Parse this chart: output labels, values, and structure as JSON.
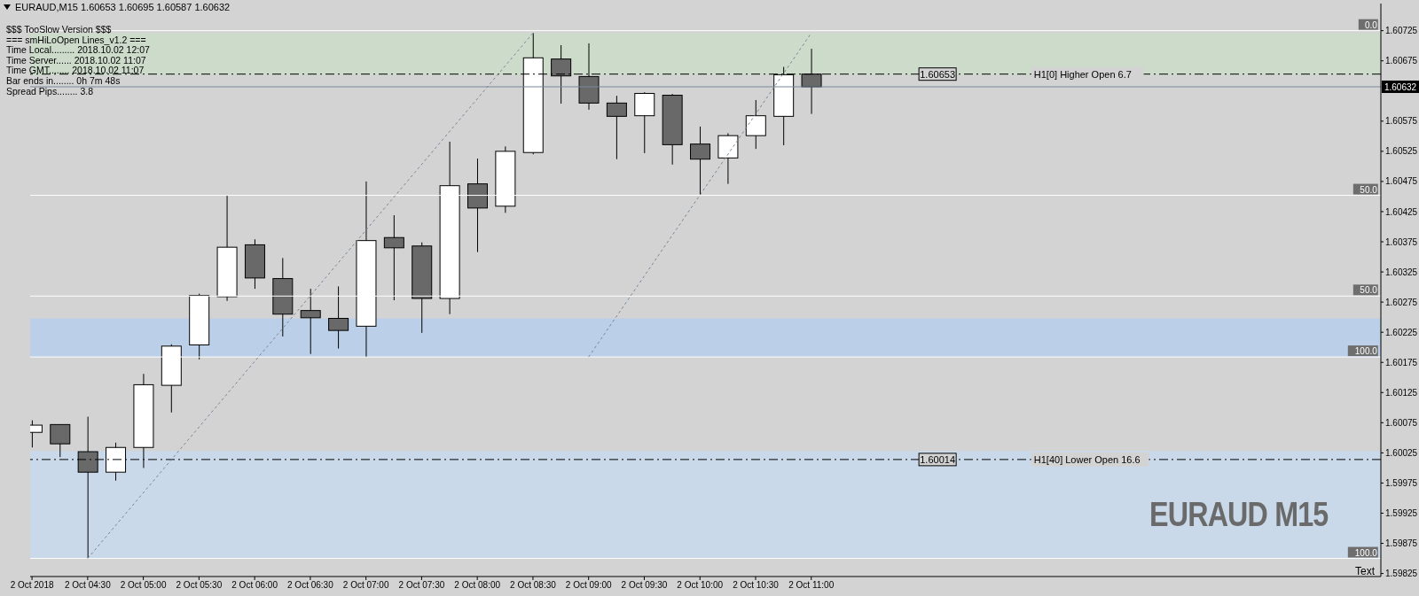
{
  "chart_data": {
    "type": "candlestick",
    "title": "EURAUD,M15  1.60653 1.60695 1.60587 1.60632",
    "subtitle": "EURAUD M15",
    "x": [
      "2018-10-02T04:00",
      "2018-10-02T04:15",
      "2018-10-02T04:30",
      "2018-10-02T04:45",
      "2018-10-02T05:00",
      "2018-10-02T05:15",
      "2018-10-02T05:30",
      "2018-10-02T05:45",
      "2018-10-02T06:00",
      "2018-10-02T06:15",
      "2018-10-02T06:30",
      "2018-10-02T06:45",
      "2018-10-02T07:00",
      "2018-10-02T07:15",
      "2018-10-02T07:30",
      "2018-10-02T07:45",
      "2018-10-02T08:00",
      "2018-10-02T08:15",
      "2018-10-02T08:30",
      "2018-10-02T08:45",
      "2018-10-02T09:00",
      "2018-10-02T09:15",
      "2018-10-02T09:30",
      "2018-10-02T09:45",
      "2018-10-02T10:00",
      "2018-10-02T10:15",
      "2018-10-02T10:30",
      "2018-10-02T10:45",
      "2018-10-02T11:00"
    ],
    "ohlc": [
      [
        1.60059,
        1.60079,
        1.60034,
        1.60071
      ],
      [
        1.60072,
        1.60072,
        1.60018,
        1.6004
      ],
      [
        1.60027,
        1.60085,
        1.5985,
        1.59993
      ],
      [
        1.59993,
        1.60042,
        1.59979,
        1.60034
      ],
      [
        1.60034,
        1.60156,
        1.6,
        1.60138
      ],
      [
        1.60137,
        1.60205,
        1.60092,
        1.60202
      ],
      [
        1.60204,
        1.60289,
        1.6018,
        1.60286
      ],
      [
        1.60284,
        1.60452,
        1.60277,
        1.60366
      ],
      [
        1.6037,
        1.60379,
        1.60297,
        1.60315
      ],
      [
        1.60314,
        1.60348,
        1.60218,
        1.60255
      ],
      [
        1.60261,
        1.60297,
        1.60189,
        1.60249
      ],
      [
        1.60248,
        1.60301,
        1.60198,
        1.60228
      ],
      [
        1.60235,
        1.60475,
        1.60184,
        1.60377
      ],
      [
        1.60382,
        1.60419,
        1.60278,
        1.60365
      ],
      [
        1.60368,
        1.60374,
        1.60224,
        1.60281
      ],
      [
        1.60281,
        1.60541,
        1.60255,
        1.60468
      ],
      [
        1.60471,
        1.60513,
        1.60358,
        1.60431
      ],
      [
        1.60434,
        1.60533,
        1.60423,
        1.60525
      ],
      [
        1.60523,
        1.60721,
        1.6052,
        1.6068
      ],
      [
        1.60678,
        1.60701,
        1.60604,
        1.6065
      ],
      [
        1.60649,
        1.60704,
        1.60594,
        1.60605
      ],
      [
        1.60605,
        1.60617,
        1.60512,
        1.60583
      ],
      [
        1.60584,
        1.60623,
        1.60522,
        1.60621
      ],
      [
        1.60618,
        1.6062,
        1.60503,
        1.60536
      ],
      [
        1.60537,
        1.60566,
        1.60453,
        1.60512
      ],
      [
        1.60514,
        1.60555,
        1.60471,
        1.60551
      ],
      [
        1.60551,
        1.6061,
        1.60529,
        1.60584
      ],
      [
        1.60583,
        1.60665,
        1.60535,
        1.60652
      ],
      [
        1.60653,
        1.60695,
        1.60587,
        1.60632
      ]
    ],
    "colors": [
      "#ffffff",
      "#696969",
      "#696969",
      "#ffffff",
      "#ffffff",
      "#ffffff",
      "#ffffff",
      "#ffffff",
      "#696969",
      "#696969",
      "#696969",
      "#696969",
      "#ffffff",
      "#696969",
      "#696969",
      "#ffffff",
      "#696969",
      "#ffffff",
      "#ffffff",
      "#696969",
      "#696969",
      "#696969",
      "#ffffff",
      "#696969",
      "#696969",
      "#ffffff",
      "#ffffff",
      "#ffffff",
      "#696969"
    ],
    "series": [
      {
        "type": "line",
        "x": [
          "2018-10-02T04:30",
          "2018-10-02T08:30"
        ],
        "values": [
          1.5985,
          1.60721
        ],
        "color": "#778899",
        "line_style": "dashed"
      },
      {
        "type": "line",
        "x": [
          "2018-10-02T09:00",
          "2018-10-02T11:00"
        ],
        "values": [
          1.60184,
          1.60721
        ],
        "color": "#778899",
        "line_style": "dashed"
      }
    ],
    "xlim": [
      "2018-10-02T03:59",
      "2018-10-02T16:07"
    ],
    "xticks": [
      {
        "value": "2018-10-02T04:00",
        "label": "2 Oct 2018"
      },
      {
        "value": "2018-10-02T04:30",
        "label": "2 Oct 04:30"
      },
      {
        "value": "2018-10-02T05:00",
        "label": "2 Oct 05:00"
      },
      {
        "value": "2018-10-02T05:30",
        "label": "2 Oct 05:30"
      },
      {
        "value": "2018-10-02T06:00",
        "label": "2 Oct 06:00"
      },
      {
        "value": "2018-10-02T06:30",
        "label": "2 Oct 06:30"
      },
      {
        "value": "2018-10-02T07:00",
        "label": "2 Oct 07:00"
      },
      {
        "value": "2018-10-02T07:30",
        "label": "2 Oct 07:30"
      },
      {
        "value": "2018-10-02T08:00",
        "label": "2 Oct 08:00"
      },
      {
        "value": "2018-10-02T08:30",
        "label": "2 Oct 08:30"
      },
      {
        "value": "2018-10-02T09:00",
        "label": "2 Oct 09:00"
      },
      {
        "value": "2018-10-02T09:30",
        "label": "2 Oct 09:30"
      },
      {
        "value": "2018-10-02T10:00",
        "label": "2 Oct 10:00"
      },
      {
        "value": "2018-10-02T10:30",
        "label": "2 Oct 10:30"
      },
      {
        "value": "2018-10-02T11:00",
        "label": "2 Oct 11:00"
      }
    ],
    "ylim": [
      1.5982,
      1.6077
    ],
    "yticks": [
      1.59825,
      1.59875,
      1.59925,
      1.59975,
      1.60025,
      1.60075,
      1.60125,
      1.60175,
      1.60225,
      1.60275,
      1.60325,
      1.60375,
      1.60425,
      1.60475,
      1.60525,
      1.60575,
      1.60675,
      1.60725
    ],
    "bands": [
      {
        "axis": "y",
        "from": 1.60651,
        "to": 1.60721,
        "color": "#cddbcb"
      },
      {
        "axis": "y",
        "from": 1.60184,
        "to": 1.60248,
        "color": "#bccfe8"
      },
      {
        "axis": "y",
        "from": 1.5985,
        "to": 1.60028,
        "color": "#c9d9ea"
      }
    ],
    "ref_lines": [
      {
        "axis": "y",
        "value": 1.60725,
        "color": "#ffffff"
      },
      {
        "axis": "y",
        "value": 1.60452,
        "color": "#ffffff"
      },
      {
        "axis": "y",
        "value": 1.60285,
        "color": "#ffffff"
      },
      {
        "axis": "y",
        "value": 1.60184,
        "color": "#ffffff"
      },
      {
        "axis": "y",
        "value": 1.5985,
        "color": "#ffffff"
      },
      {
        "axis": "y",
        "value": 1.60632,
        "label": "1.60632",
        "color": "#778899"
      },
      {
        "axis": "y",
        "value": 1.60653,
        "label": "1.60653",
        "color": "#000000",
        "line_style": "dashed"
      },
      {
        "axis": "y",
        "value": 1.60014,
        "label": "1.60014",
        "color": "#000000",
        "line_style": "dashed"
      }
    ],
    "annotations": [
      "$$$ TooSlow Version $$$",
      "=== smHiLoOpen Lines_v1.2 ===",
      "Time Local......... 2018.10.02 12:07",
      "Time Server...... 2018.10.02 11:07",
      "Time GMT........ 2018.10.02 11:07",
      "Bar ends in........ 0h 7m 48s",
      "Spread Pips........ 3.8",
      {
        "text": "H1[0] Higher Open 6.7",
        "x": "2018-10-02T13:00",
        "y": 1.60653
      },
      {
        "text": "H1[40] Lower Open 16.6",
        "x": "2018-10-02T13:00",
        "y": 1.60014
      },
      {
        "text": "0.0",
        "x": "2018-10-02T16:05",
        "y": 1.60725
      },
      {
        "text": "50.0",
        "x": "2018-10-02T16:05",
        "y": 1.60452
      },
      {
        "text": "50.0",
        "x": "2018-10-02T16:05",
        "y": 1.60285
      },
      {
        "text": "100.0",
        "x": "2018-10-02T16:05",
        "y": 1.60184
      },
      {
        "text": "100.0",
        "x": "2018-10-02T16:05",
        "y": 1.5985
      },
      "Text"
    ]
  }
}
